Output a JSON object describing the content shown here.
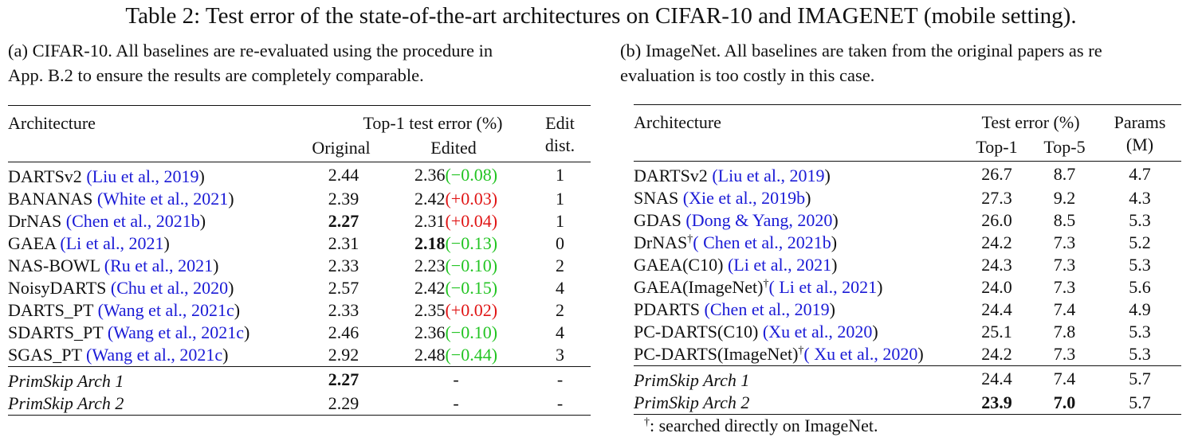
{
  "title": {
    "prefix": "Table 2: Test error of the state-of-the-art architectures on ",
    "ds1": "CIFAR-10",
    "mid": " and ",
    "ds2": "IMAGENET",
    "suffix": " (mobile setting)."
  },
  "caption_a": {
    "label": "(a) ",
    "ds": "CIFAR-10",
    "line1_rest": ".  All baselines are re-evaluated using the procedure in",
    "line2": "App. B.2 to ensure the results are completely comparable."
  },
  "caption_b": {
    "line1": "(b) ImageNet.  All baselines are taken from the original papers as re",
    "line2": "evaluation is too costly in this case."
  },
  "table_a": {
    "header": {
      "arch": "Architecture",
      "group": "Top-1 test error (%)",
      "original": "Original",
      "edited": "Edited",
      "edit1": "Edit",
      "edit2": "dist."
    },
    "rows": [
      {
        "name": "DARTSv2 ",
        "cite_text": "Liu et al., ",
        "cite_year": "2019",
        "orig": "2.44",
        "edited": "2.36",
        "delta": "(−0.08)",
        "sign": "neg",
        "dist": "1"
      },
      {
        "name": "BANANAS ",
        "cite_text": "White et al., ",
        "cite_year": "2021",
        "orig": "2.39",
        "edited": "2.42",
        "delta": "(+0.03)",
        "sign": "pos",
        "dist": "1"
      },
      {
        "name": "DrNAS ",
        "cite_text": "Chen et al., ",
        "cite_year": "2021b",
        "orig": "2.27",
        "edited": "2.31",
        "delta": "(+0.04)",
        "sign": "pos",
        "dist": "1"
      },
      {
        "name": "GAEA ",
        "cite_text": "Li et al., ",
        "cite_year": "2021",
        "orig": "2.31",
        "edited": "2.18",
        "delta": "(−0.13)",
        "sign": "neg",
        "dist": "0"
      },
      {
        "name": "NAS-BOWL ",
        "cite_text": "Ru et al., ",
        "cite_year": "2021",
        "orig": "2.33",
        "edited": "2.23",
        "delta": "(−0.10)",
        "sign": "neg",
        "dist": "2"
      },
      {
        "name": "NoisyDARTS ",
        "cite_text": "Chu et al., ",
        "cite_year": "2020",
        "orig": "2.57",
        "edited": "2.42",
        "delta": "(−0.15)",
        "sign": "neg",
        "dist": "4"
      },
      {
        "name": "DARTS_PT ",
        "cite_text": "Wang et al., ",
        "cite_year": "2021c",
        "orig": "2.33",
        "edited": "2.35",
        "delta": "(+0.02)",
        "sign": "pos",
        "dist": "2"
      },
      {
        "name": "SDARTS_PT ",
        "cite_text": "Wang et al., ",
        "cite_year": "2021c",
        "orig": "2.46",
        "edited": "2.36",
        "delta": "(−0.10)",
        "sign": "neg",
        "dist": "4"
      },
      {
        "name": "SGAS_PT ",
        "cite_text": "Wang et al., ",
        "cite_year": "2021c",
        "orig": "2.92",
        "edited": "2.48",
        "delta": "(−0.44)",
        "sign": "neg",
        "dist": "3"
      }
    ],
    "ours": [
      {
        "name": "PrimSkip Arch 1",
        "orig": "2.27",
        "edited": "-",
        "dist": "-"
      },
      {
        "name": "PrimSkip Arch 2",
        "orig": "2.29",
        "edited": "-",
        "dist": "-"
      }
    ]
  },
  "table_b": {
    "header": {
      "arch": "Architecture",
      "group": "Test error (%)",
      "top1": "Top-1",
      "top5": "Top-5",
      "params1": "Params",
      "params2": "(M)"
    },
    "rows": [
      {
        "name": "DARTSv2 ",
        "dagger": "",
        "cite_text": "Liu et al., ",
        "cite_year": "2019",
        "top1": "26.7",
        "top5": "8.7",
        "params": "4.7"
      },
      {
        "name": "SNAS ",
        "dagger": "",
        "cite_text": "Xie et al., ",
        "cite_year": "2019b",
        "top1": "27.3",
        "top5": "9.2",
        "params": "4.3"
      },
      {
        "name": "GDAS ",
        "dagger": "",
        "cite_text": "Dong & Yang, ",
        "cite_year": "2020",
        "top1": "26.0",
        "top5": "8.5",
        "params": "5.3"
      },
      {
        "name": "DrNAS",
        "dagger": "†",
        "cite_text": " Chen et al., ",
        "cite_year": "2021b",
        "top1": "24.2",
        "top5": "7.3",
        "params": "5.2"
      },
      {
        "name": "GAEA(C10) ",
        "dagger": "",
        "cite_text": "Li et al., ",
        "cite_year": "2021",
        "top1": "24.3",
        "top5": "7.3",
        "params": "5.3"
      },
      {
        "name": "GAEA(ImageNet)",
        "dagger": "†",
        "cite_text": " Li et al., ",
        "cite_year": "2021",
        "top1": "24.0",
        "top5": "7.3",
        "params": "5.6"
      },
      {
        "name": "PDARTS ",
        "dagger": "",
        "cite_text": "Chen et al., ",
        "cite_year": "2019",
        "top1": "24.4",
        "top5": "7.4",
        "params": "4.9"
      },
      {
        "name": "PC-DARTS(C10) ",
        "dagger": "",
        "cite_text": "Xu et al., ",
        "cite_year": "2020",
        "top1": "25.1",
        "top5": "7.8",
        "params": "5.3"
      },
      {
        "name": "PC-DARTS(ImageNet)",
        "dagger": "†",
        "cite_text": " Xu et al., ",
        "cite_year": "2020",
        "top1": "24.2",
        "top5": "7.3",
        "params": "5.3"
      }
    ],
    "ours": [
      {
        "name": "PrimSkip Arch 1",
        "top1": "24.4",
        "top5": "7.4",
        "params": "5.7"
      },
      {
        "name": "PrimSkip Arch 2",
        "top1": "23.9",
        "top5": "7.0",
        "params": "5.7"
      }
    ]
  },
  "footnote": {
    "dagger": "†",
    "text": ": searched directly on ImageNet."
  },
  "colors": {
    "citation": "#1a1ad6",
    "negative_delta": "#22c422",
    "positive_delta": "#e01515"
  }
}
